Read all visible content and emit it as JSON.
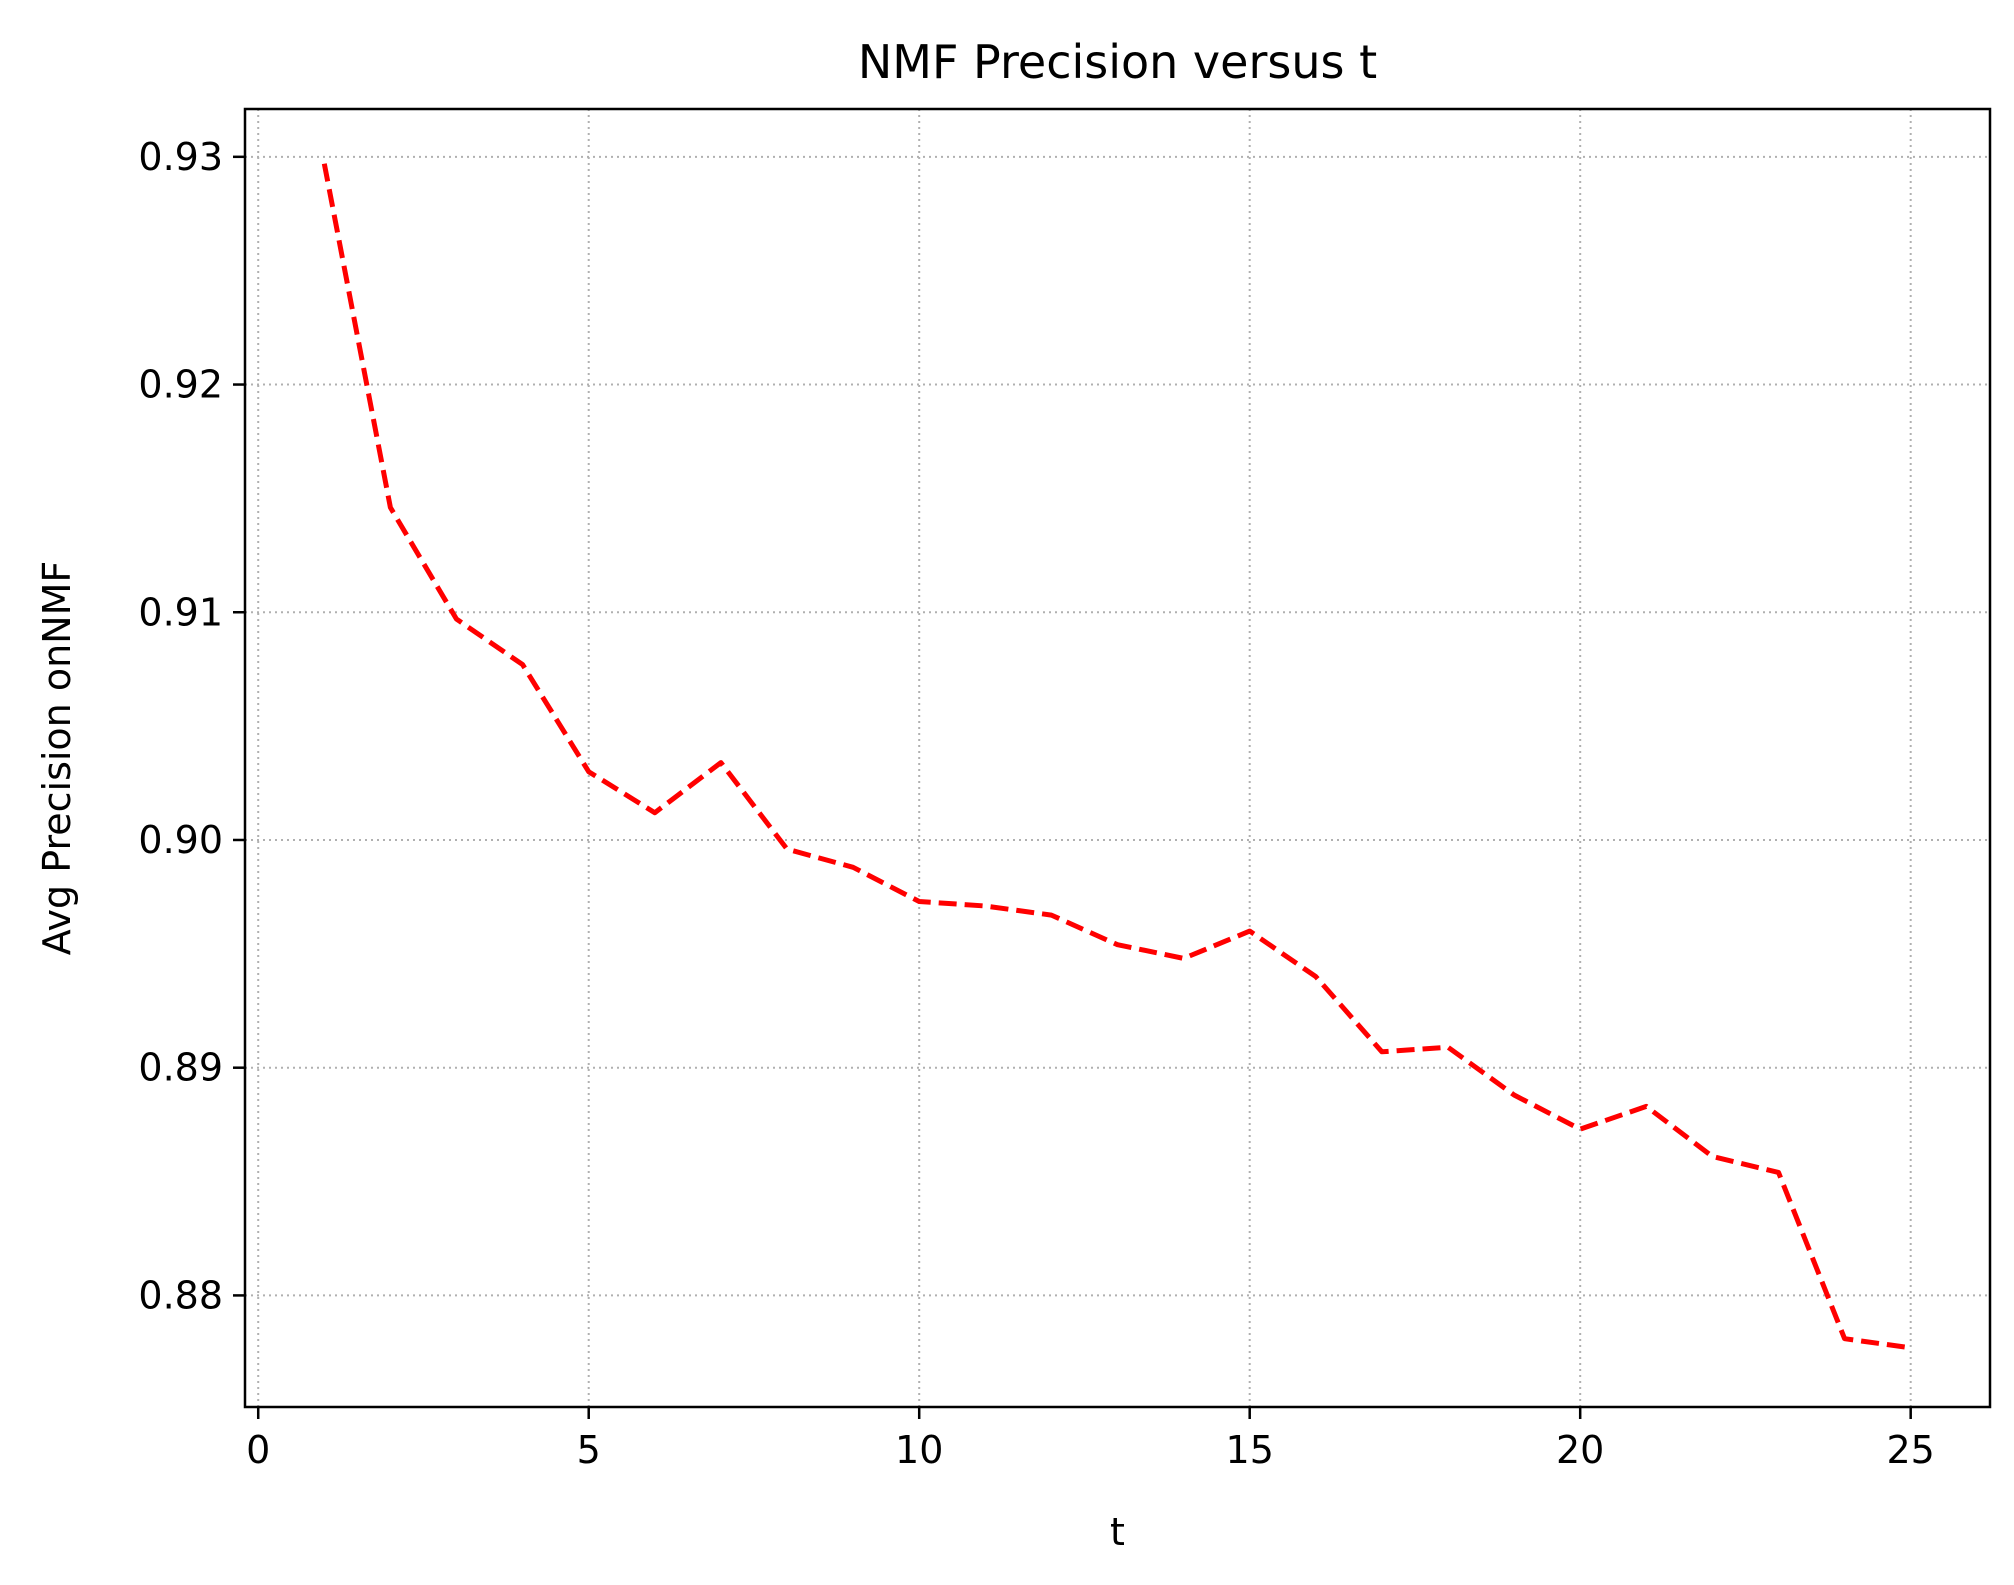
{
  "chart_data": {
    "type": "line",
    "title": "NMF Precision versus t",
    "xlabel": "t",
    "ylabel": "Avg Precision onNMF",
    "xlim": [
      -0.2,
      26.2
    ],
    "ylim": [
      0.8751,
      0.9321
    ],
    "xticks": [
      0,
      5,
      10,
      15,
      20,
      25
    ],
    "xtick_labels": [
      "0",
      "5",
      "10",
      "15",
      "20",
      "25"
    ],
    "yticks": [
      0.88,
      0.89,
      0.9,
      0.91,
      0.92,
      0.93
    ],
    "ytick_labels": [
      "0.88",
      "0.89",
      "0.90",
      "0.91",
      "0.92",
      "0.93"
    ],
    "grid": true,
    "series": [
      {
        "line_style": "dashed",
        "color": "#ff0000",
        "x": [
          1,
          2,
          3,
          4,
          5,
          6,
          7,
          8,
          9,
          10,
          11,
          12,
          13,
          14,
          15,
          16,
          17,
          18,
          19,
          20,
          21,
          22,
          23,
          24,
          25
        ],
        "y": [
          0.9297,
          0.9146,
          0.9097,
          0.9077,
          0.903,
          0.9012,
          0.9034,
          0.8996,
          0.8988,
          0.8973,
          0.8971,
          0.8967,
          0.8954,
          0.8948,
          0.896,
          0.894,
          0.8907,
          0.8909,
          0.8888,
          0.8873,
          0.8883,
          0.8861,
          0.8854,
          0.8781,
          0.8777
        ]
      }
    ]
  }
}
